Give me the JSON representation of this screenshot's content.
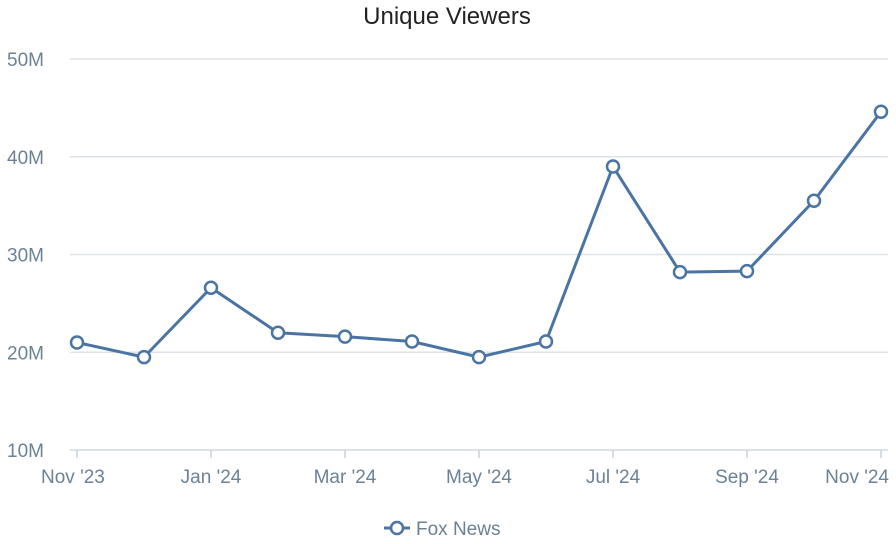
{
  "chart_data": {
    "type": "line",
    "title": "Unique Viewers",
    "xlabel": "",
    "ylabel": "",
    "x": [
      "Nov '23",
      "Dec '23",
      "Jan '24",
      "Feb '24",
      "Mar '24",
      "Apr '24",
      "May '24",
      "Jun '24",
      "Jul '24",
      "Aug '24",
      "Sep '24",
      "Oct '24",
      "Nov '24"
    ],
    "x_tick_labels": [
      "Nov '23",
      "Jan '24",
      "Mar '24",
      "May '24",
      "Jul '24",
      "Sep '24",
      "Nov '24"
    ],
    "y_tick_labels": [
      "10M",
      "20M",
      "30M",
      "40M",
      "50M"
    ],
    "y_ticks": [
      10,
      20,
      30,
      40,
      50
    ],
    "ylim": [
      10,
      50
    ],
    "y_unit": "M",
    "grid": true,
    "legend_position": "bottom-center",
    "series": [
      {
        "name": "Fox News",
        "color": "#4a74a4",
        "values": [
          21.0,
          19.5,
          26.6,
          22.0,
          21.6,
          21.1,
          19.5,
          21.1,
          39.0,
          28.2,
          28.3,
          35.5,
          44.6
        ]
      }
    ]
  }
}
